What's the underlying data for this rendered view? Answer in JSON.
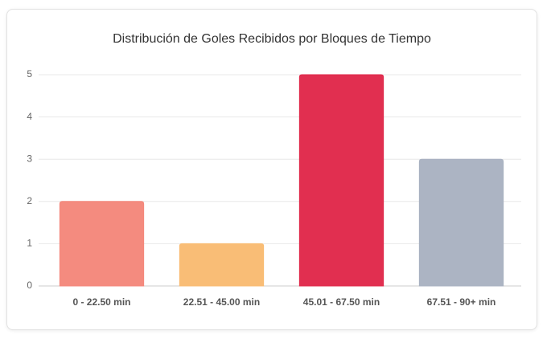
{
  "chart_data": {
    "type": "bar",
    "title": "Distribución de Goles Recibidos por Bloques de Tiempo",
    "categories": [
      "0 - 22.50 min",
      "22.51 - 45.00 min",
      "45.01 - 67.50 min",
      "67.51 - 90+ min"
    ],
    "values": [
      2,
      1,
      5,
      3
    ],
    "colors": [
      "#f4877b",
      "#f9bb72",
      "#e0284a",
      "#a9b2c1"
    ],
    "ylim": [
      0,
      5
    ],
    "yticks": [
      0,
      1,
      2,
      3,
      4,
      5
    ],
    "grid": true
  }
}
